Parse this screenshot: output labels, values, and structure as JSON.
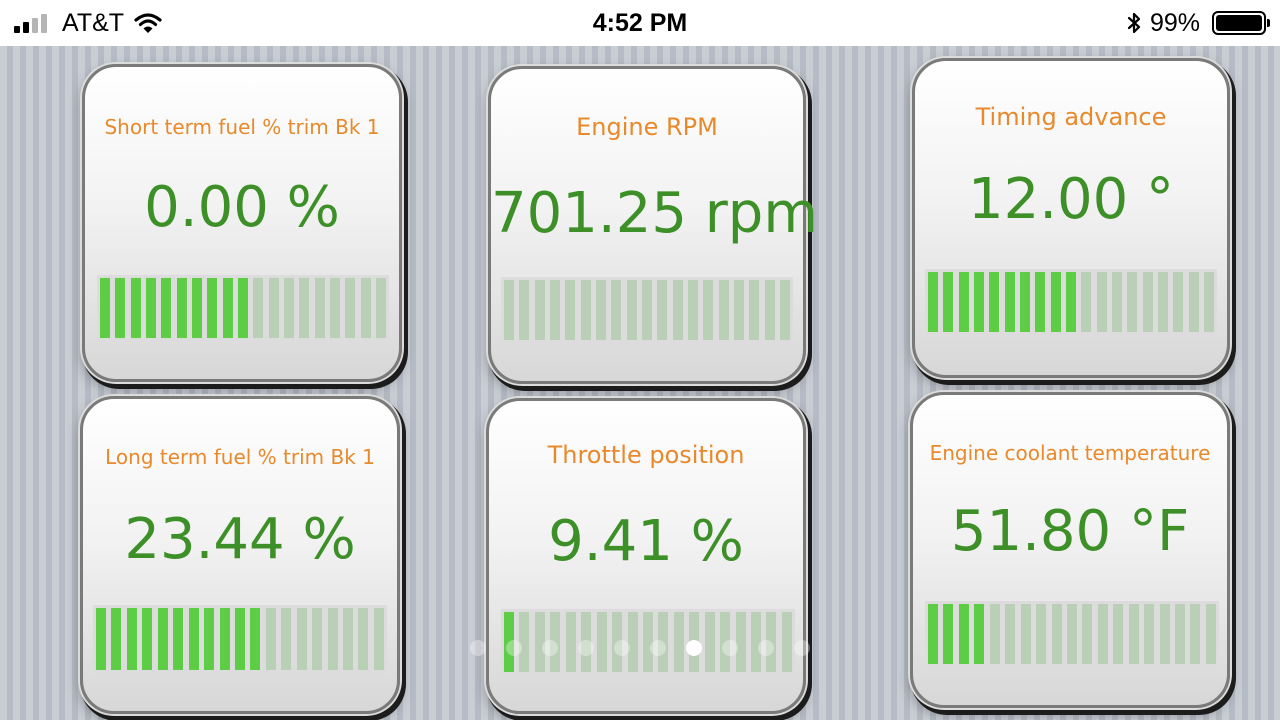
{
  "status_bar": {
    "carrier": "AT&T",
    "time": "4:52 PM",
    "battery": "99%",
    "battery_level": 0.99,
    "signal_bars_active": 2,
    "signal_bars_total": 4,
    "icons": [
      "signal-icon",
      "wifi-icon",
      "bluetooth-icon",
      "battery-icon"
    ]
  },
  "gauges": [
    {
      "title": "Short term fuel % trim Bk 1",
      "value": "0.00 %",
      "segments_total": 19,
      "segments_lit": 10
    },
    {
      "title": "Engine RPM",
      "value": "701.25 rpm",
      "segments_total": 19,
      "segments_lit": 0
    },
    {
      "title": "Timing advance",
      "value": "12.00 °",
      "segments_total": 19,
      "segments_lit": 10
    },
    {
      "title": "Long term fuel % trim Bk 1",
      "value": "23.44 %",
      "segments_total": 19,
      "segments_lit": 11
    },
    {
      "title": "Throttle position",
      "value": "9.41 %",
      "segments_total": 19,
      "segments_lit": 1
    },
    {
      "title": "Engine coolant temperature",
      "value": "51.80 °F",
      "segments_total": 19,
      "segments_lit": 4
    }
  ],
  "pagination": {
    "total": 10,
    "active_index": 6
  },
  "colors": {
    "title": "#e8892b",
    "value": "#3d8f27",
    "segment_on": "#5ccd44",
    "segment_off": "#b9cfb6"
  }
}
